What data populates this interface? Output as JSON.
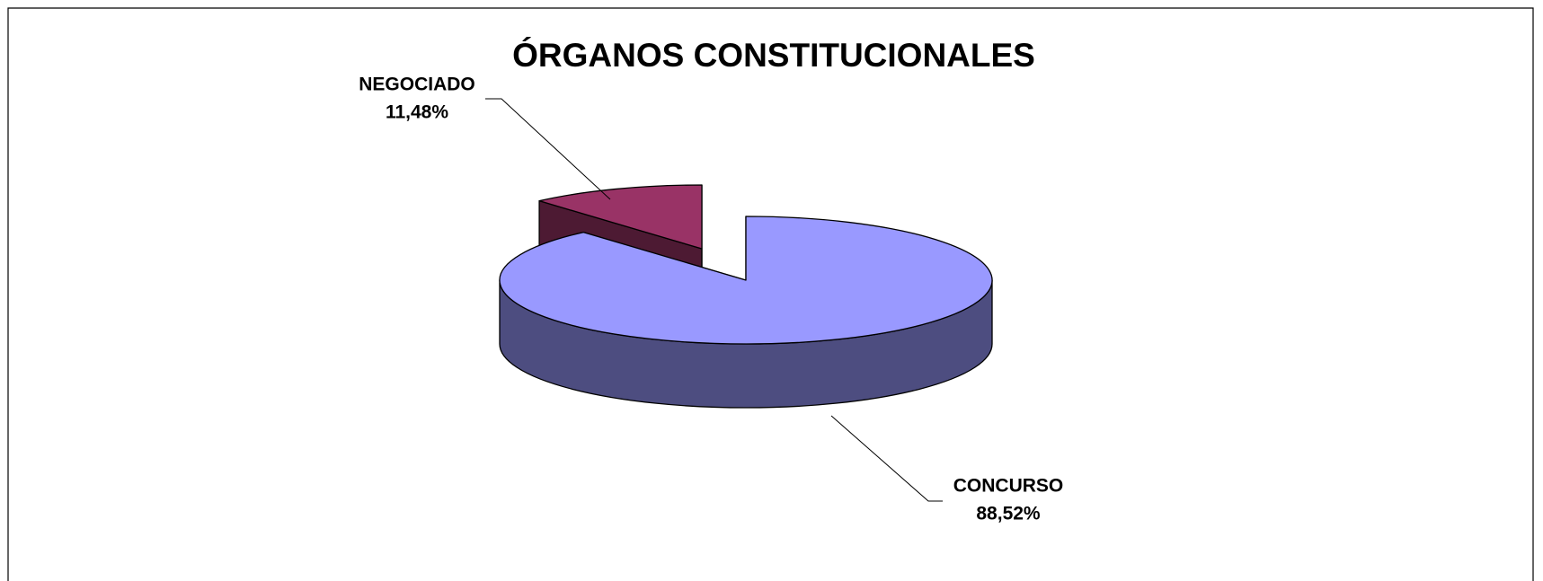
{
  "chart_data": {
    "type": "pie",
    "title": "ÓRGANOS CONSTITUCIONALES",
    "categories": [
      "CONCURSO",
      "NEGOCIADO"
    ],
    "values": [
      88.52,
      11.48
    ],
    "value_labels": [
      "88,52%",
      "11,48%"
    ],
    "colors": [
      "#9999ff",
      "#993366"
    ],
    "three_d": true
  }
}
